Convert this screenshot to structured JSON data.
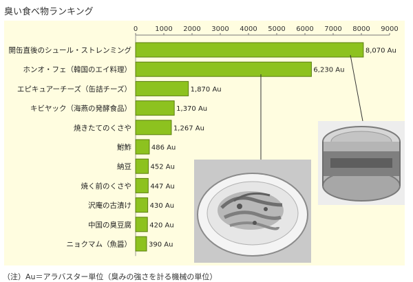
{
  "chart_data": {
    "type": "bar",
    "orientation": "horizontal",
    "title": "臭い食べ物ランキング",
    "categories": [
      "開缶直後のシュール・ストレンミング",
      "ホンオ・フェ（韓国のエイ料理）",
      "エピキュアーチーズ（缶詰チーズ）",
      "キビヤック（海燕の発酵食品）",
      "焼きたてのくさや",
      "鮒鮓",
      "納豆",
      "焼く前のくさや",
      "沢庵の古漬け",
      "中国の臭豆腐",
      "ニョクマム（魚醤）"
    ],
    "values": [
      8070,
      6230,
      1870,
      1370,
      1267,
      486,
      452,
      447,
      430,
      420,
      390
    ],
    "value_labels": [
      "8,070 Au",
      "6,230 Au",
      "1,870 Au",
      "1,370 Au",
      "1,267 Au",
      "486 Au",
      "452 Au",
      "447 Au",
      "430 Au",
      "420 Au",
      "390 Au"
    ],
    "xticks": [
      "0",
      "1000",
      "2000",
      "3000",
      "4000",
      "5000",
      "6000",
      "7000",
      "8000",
      "9000"
    ],
    "xlim": [
      0,
      9000
    ],
    "grid": false,
    "colors": {
      "bar_fill": "#8dc21f",
      "bar_stroke": "#5a7d12",
      "plot_bg": "#fffde0"
    }
  },
  "footnote": "（注）Au＝アラバスター単位（臭みの強さを計る機械の単位）"
}
